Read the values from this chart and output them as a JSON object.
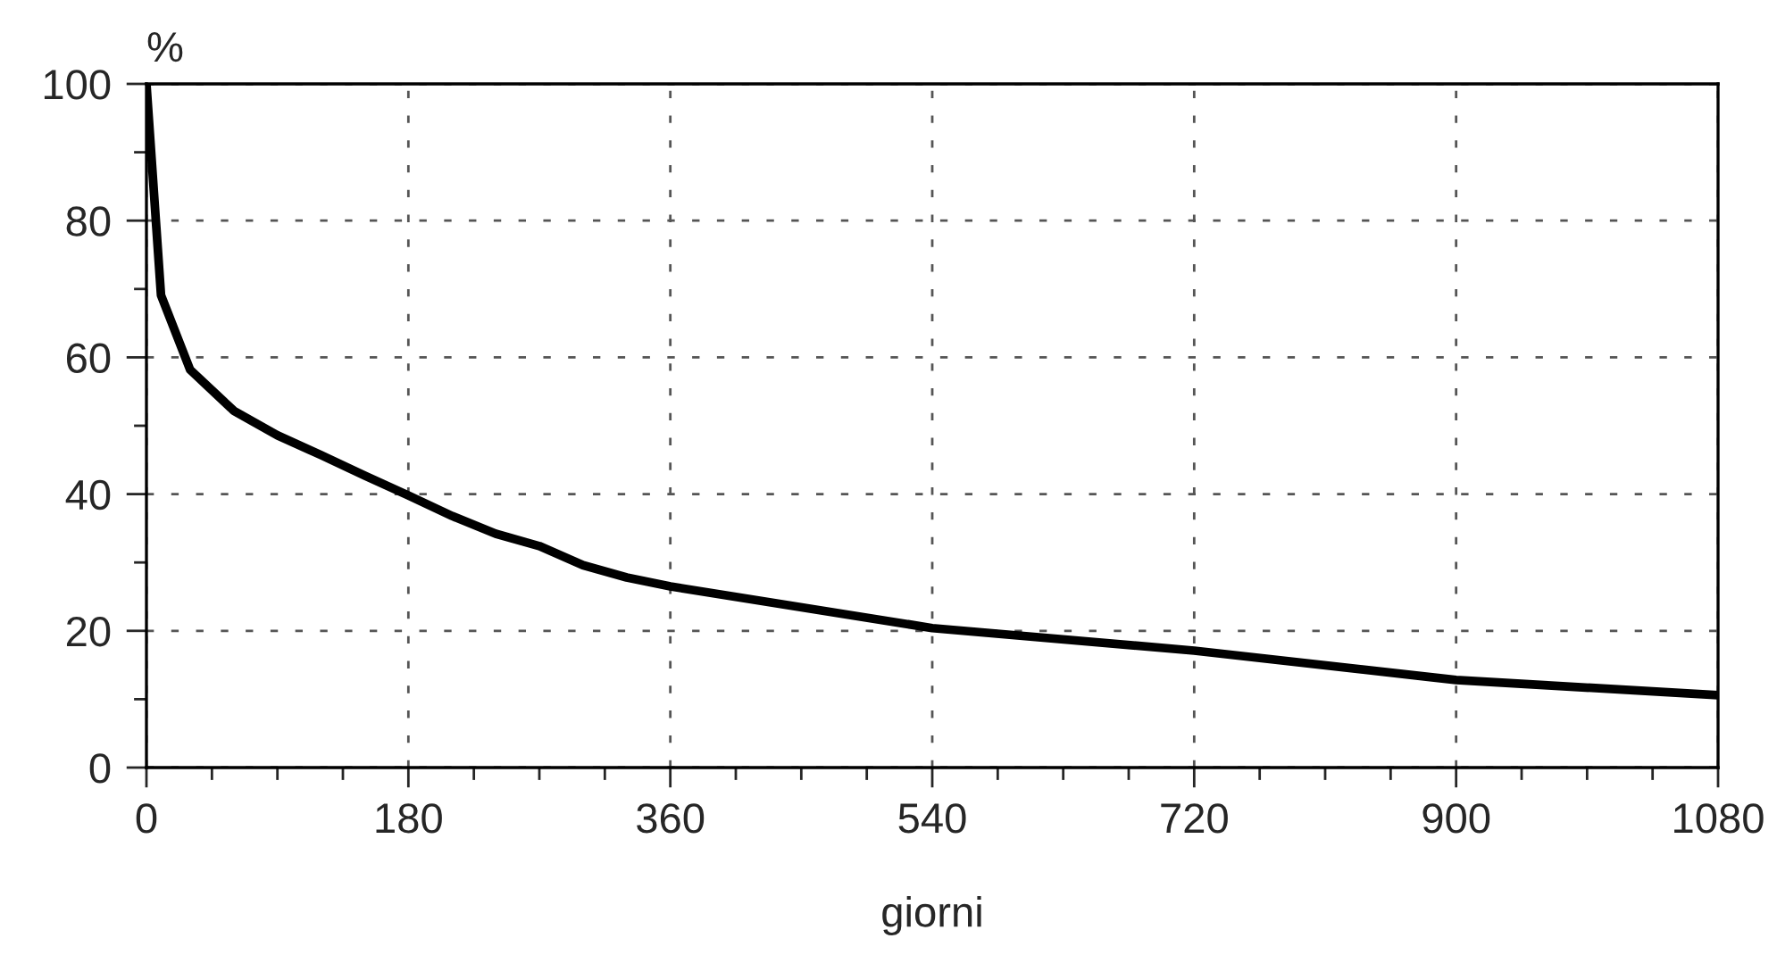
{
  "chart_data": {
    "type": "line",
    "xlabel": "giorni",
    "ylabel": "%",
    "x": [
      0,
      10,
      30,
      60,
      90,
      120,
      150,
      180,
      210,
      240,
      270,
      300,
      330,
      360,
      540,
      720,
      900,
      1080
    ],
    "series": [
      {
        "color": "#000000",
        "values": [
          100,
          69.1,
          58.2,
          52.2,
          48.6,
          45.7,
          42.7,
          39.8,
          36.8,
          34.2,
          32.4,
          29.6,
          27.8,
          26.5,
          20.4,
          17.1,
          12.8,
          10.6
        ]
      }
    ],
    "xlim": [
      0,
      1080
    ],
    "ylim": [
      0,
      100
    ],
    "xticks": [
      0,
      {
        "value": 45,
        "label": null
      },
      {
        "value": 90,
        "label": null
      },
      {
        "value": 135,
        "label": null
      },
      180,
      {
        "value": 225,
        "label": null
      },
      {
        "value": 270,
        "label": null
      },
      {
        "value": 315,
        "label": null
      },
      360,
      {
        "value": 405,
        "label": null
      },
      {
        "value": 450,
        "label": null
      },
      {
        "value": 495,
        "label": null
      },
      540,
      {
        "value": 585,
        "label": null
      },
      {
        "value": 630,
        "label": null
      },
      {
        "value": 675,
        "label": null
      },
      720,
      {
        "value": 765,
        "label": null
      },
      {
        "value": 810,
        "label": null
      },
      {
        "value": 855,
        "label": null
      },
      900,
      {
        "value": 945,
        "label": null
      },
      {
        "value": 990,
        "label": null
      },
      {
        "value": 1035,
        "label": null
      },
      1080
    ],
    "yticks": [
      0,
      {
        "value": 10,
        "label": null
      },
      20,
      {
        "value": 30,
        "label": null
      },
      40,
      {
        "value": 50,
        "label": null
      },
      60,
      {
        "value": 70,
        "label": null
      },
      80,
      {
        "value": 90,
        "label": null
      },
      100
    ],
    "grid": true,
    "legend": false,
    "marker": "none",
    "line_style": "solid"
  }
}
